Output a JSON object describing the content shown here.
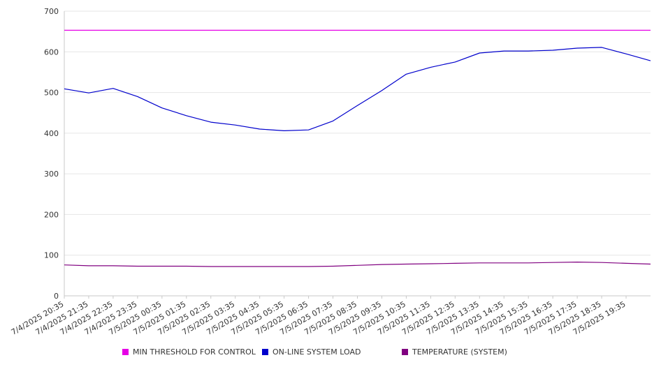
{
  "chart_data": {
    "type": "line",
    "x": [
      "7/4/2025 20:35",
      "7/4/2025 21:35",
      "7/4/2025 22:35",
      "7/4/2025 23:35",
      "7/5/2025 00:35",
      "7/5/2025 01:35",
      "7/5/2025 02:35",
      "7/5/2025 03:35",
      "7/5/2025 04:35",
      "7/5/2025 05:35",
      "7/5/2025 06:35",
      "7/5/2025 07:35",
      "7/5/2025 08:35",
      "7/5/2025 09:35",
      "7/5/2025 10:35",
      "7/5/2025 11:35",
      "7/5/2025 12:35",
      "7/5/2025 13:35",
      "7/5/2025 14:35",
      "7/5/2025 15:35",
      "7/5/2025 16:35",
      "7/5/2025 17:35",
      "7/5/2025 18:35",
      "7/5/2025 19:35"
    ],
    "ylim": [
      0,
      700
    ],
    "yticks": [
      0,
      100,
      200,
      300,
      400,
      500,
      600,
      700
    ],
    "grid": true,
    "legend_position": "bottom",
    "series": [
      {
        "name": "MIN THRESHOLD FOR CONTROL",
        "color": "#e600e6",
        "values": [
          653,
          653,
          653,
          653,
          653,
          653,
          653,
          653,
          653,
          653,
          653,
          653,
          653,
          653,
          653,
          653,
          653,
          653,
          653,
          653,
          653,
          653,
          653,
          653
        ]
      },
      {
        "name": "ON-LINE SYSTEM LOAD",
        "color": "#0000cc",
        "values": [
          509,
          499,
          510,
          490,
          462,
          443,
          427,
          420,
          410,
          406,
          408,
          430,
          468,
          505,
          545,
          562,
          575,
          597,
          602,
          602,
          604,
          609,
          611,
          595
        ]
      },
      {
        "name": "TEMPERATURE (SYSTEM)",
        "color": "#800080",
        "values": [
          76,
          74,
          74,
          73,
          73,
          73,
          72,
          72,
          72,
          72,
          72,
          73,
          75,
          77,
          78,
          79,
          80,
          81,
          81,
          81,
          82,
          83,
          82,
          80
        ]
      }
    ],
    "x_end_values": {
      "ON-LINE SYSTEM LOAD": 578,
      "TEMPERATURE (SYSTEM)": 78,
      "MIN THRESHOLD FOR CONTROL": 653
    }
  }
}
